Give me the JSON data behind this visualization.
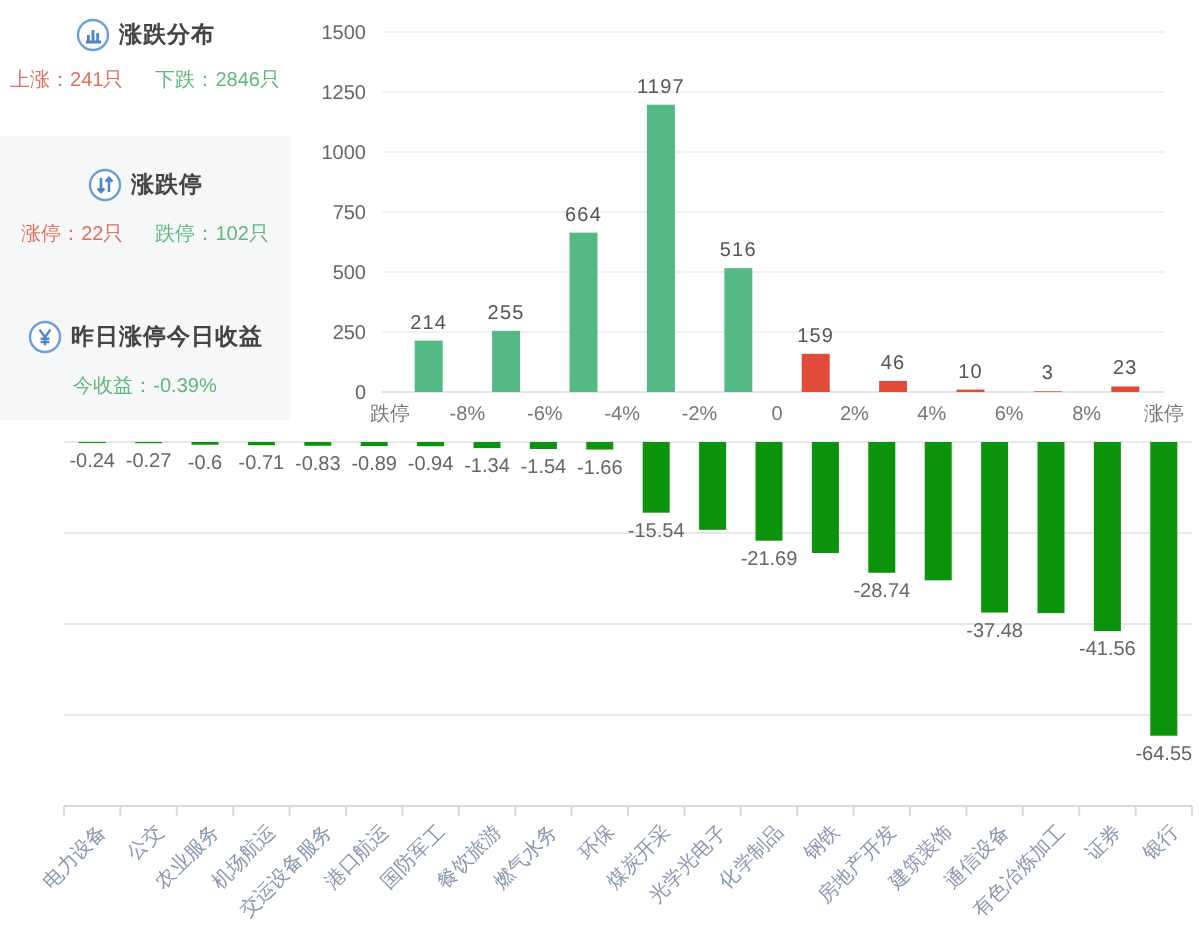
{
  "chart_data": [
    {
      "type": "other",
      "title": "涨跌分布",
      "annotations": [
        "上涨：241只",
        "下跌：2846只"
      ]
    },
    {
      "type": "other",
      "title": "涨跌停",
      "annotations": [
        "涨停：22只",
        "跌停：102只"
      ]
    },
    {
      "type": "other",
      "title": "昨日涨停今日收益",
      "annotations": [
        "今收益：-0.39%"
      ]
    },
    {
      "type": "bar",
      "x": [
        -9,
        -7,
        -5,
        -3,
        -1,
        1,
        3,
        5,
        7,
        9
      ],
      "values": [
        214,
        255,
        664,
        1197,
        516,
        159,
        46,
        10,
        3,
        23
      ],
      "colors": [
        "#55b985",
        "#55b985",
        "#55b985",
        "#55b985",
        "#55b985",
        "#e04b3a",
        "#e04b3a",
        "#e04b3a",
        "#e04b3a",
        "#e04b3a"
      ],
      "xlim": [
        -10,
        10
      ],
      "xticks": [
        {
          "value": -10,
          "label": "跌停"
        },
        {
          "value": -8,
          "label": "-8%"
        },
        {
          "value": -6,
          "label": "-6%"
        },
        {
          "value": -4,
          "label": "-4%"
        },
        {
          "value": -2,
          "label": "-2%"
        },
        0,
        {
          "value": 2,
          "label": "2%"
        },
        {
          "value": 4,
          "label": "4%"
        },
        {
          "value": 6,
          "label": "6%"
        },
        {
          "value": 8,
          "label": "8%"
        },
        {
          "value": 10,
          "label": "涨停"
        }
      ],
      "ylim": [
        0,
        1500
      ],
      "yticks": [
        0,
        250,
        500,
        750,
        1000,
        1250,
        1500
      ],
      "grid": "y",
      "data_labels": true
    },
    {
      "type": "bar",
      "categories": [
        "电力设备",
        "公交",
        "农业服务",
        "机场航运",
        "交运设备服务",
        "港口航运",
        "国防军工",
        "餐饮旅游",
        "燃气水务",
        "环保",
        "煤炭开采",
        "光学光电子",
        "化学制品",
        "钢铁",
        "房地产开发",
        "建筑装饰",
        "通信设备",
        "有色冶炼加工",
        "证券",
        "银行"
      ],
      "values": [
        -0.24,
        -0.27,
        -0.6,
        -0.71,
        -0.83,
        -0.89,
        -0.94,
        -1.34,
        -1.54,
        -1.66,
        -15.54,
        -19.3,
        -21.69,
        -24.4,
        -28.74,
        -30.4,
        -37.48,
        -37.6,
        -41.56,
        -64.55
      ],
      "value_labels": [
        "-0.24",
        "-0.27",
        "-0.6",
        "-0.71",
        "-0.83",
        "-0.89",
        "-0.94",
        "-1.34",
        "-1.54",
        "-1.66",
        "-15.54",
        null,
        "-21.69",
        null,
        "-28.74",
        null,
        "-37.48",
        null,
        "-41.56",
        "-64.55"
      ],
      "color": "#0b930b",
      "ylim": [
        -80,
        0
      ],
      "yticks": [
        {
          "value": -80,
          "label": null
        },
        {
          "value": -60,
          "label": null
        },
        {
          "value": -40,
          "label": null
        },
        {
          "value": -20,
          "label": null
        },
        {
          "value": 0,
          "label": null
        }
      ],
      "tick_labels": "x",
      "grid": "y"
    }
  ]
}
